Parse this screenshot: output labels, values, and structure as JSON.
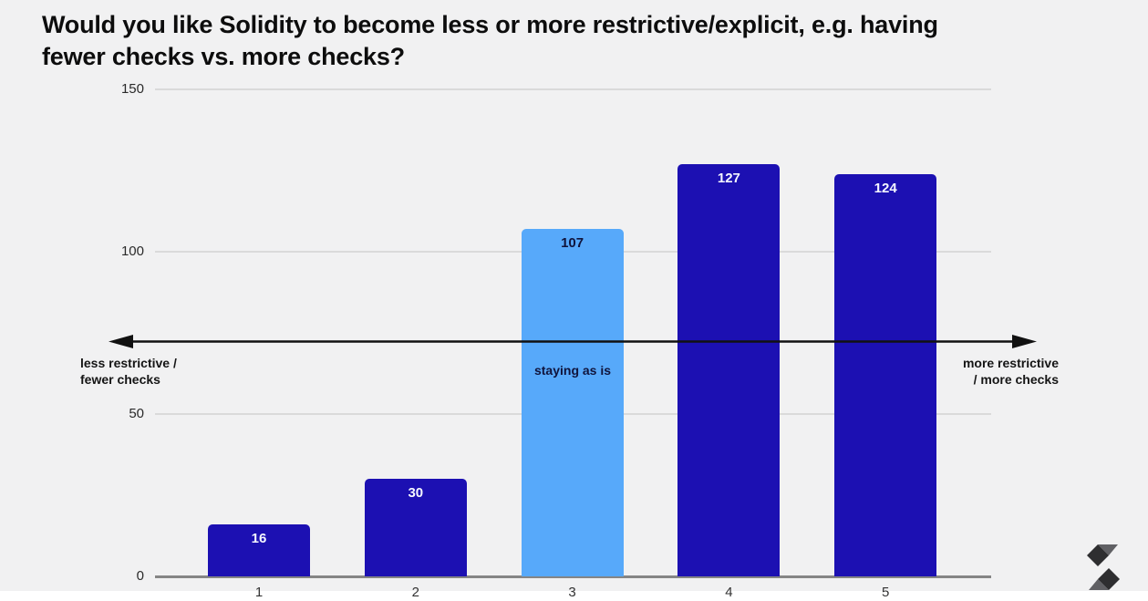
{
  "header": {
    "title_line1": "Would you like Solidity to become less or more restrictive/explicit, e.g. having",
    "title_line2": "fewer checks vs. more checks?"
  },
  "colors": {
    "background": "#f1f1f2",
    "bar_dark": "#1c10b2",
    "bar_light": "#57a9fa",
    "value_label_light": "#f5f7ff",
    "value_label_dark": "#10143c",
    "gridline": "#dadada",
    "axis_line": "#858585",
    "arrow": "#111111",
    "title_text": "#0d0d0d"
  },
  "chart_data": {
    "type": "bar",
    "title": "Would you like Solidity to become less or more restrictive/explicit, e.g. having fewer checks vs. more checks?",
    "categories": [
      "1",
      "2",
      "3",
      "4",
      "5"
    ],
    "values": [
      16,
      30,
      107,
      127,
      124
    ],
    "bar_styles": [
      "dark",
      "dark",
      "light",
      "dark",
      "dark"
    ],
    "xlabel": "",
    "ylabel": "",
    "ylim": [
      0,
      150
    ],
    "yticks": [
      0,
      50,
      100,
      150
    ],
    "grid": "horizontal gridlines on",
    "legend": "none",
    "annotations": {
      "left_line1": "less restrictive /",
      "left_line2": "fewer checks",
      "center": "staying as is",
      "right_line1": "more restrictive",
      "right_line2": "/ more checks",
      "arrow": "double-headed horizontal axis arrow at y≈70"
    }
  },
  "logo_icon": "solidity-logo"
}
